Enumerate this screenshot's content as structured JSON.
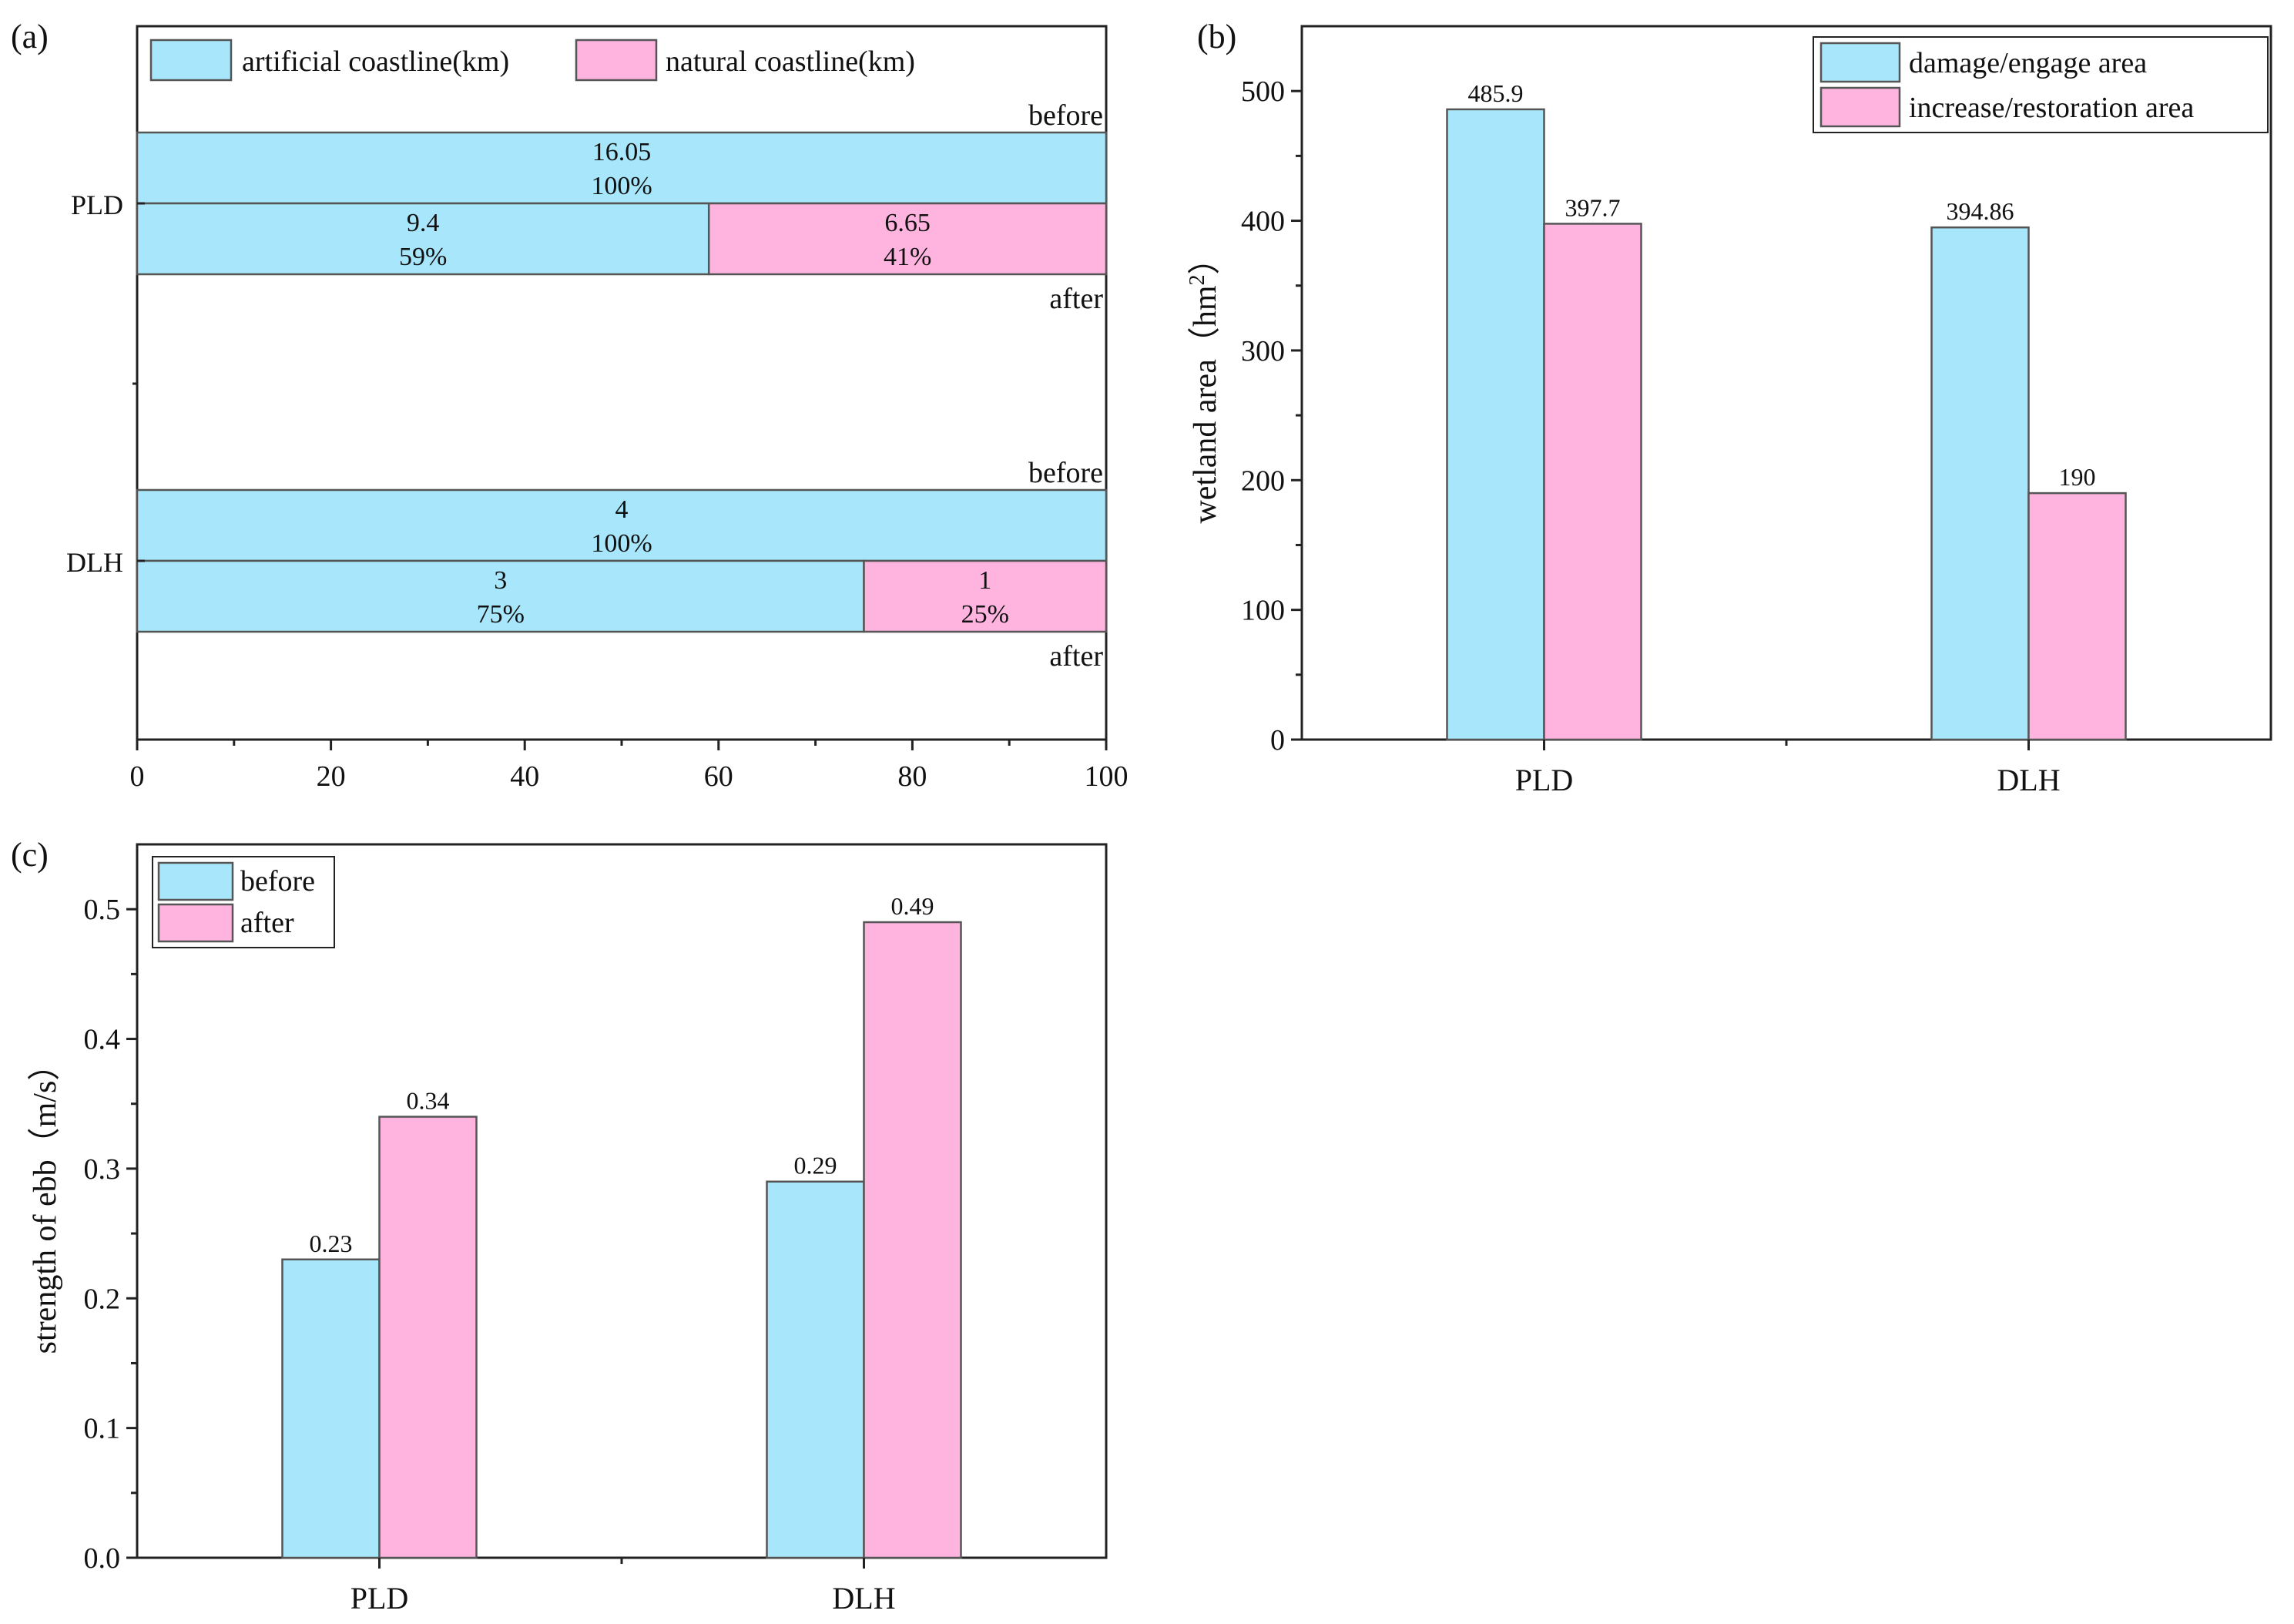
{
  "colors": {
    "cyan": "#a8e6fb",
    "pink": "#ffb3df",
    "edge": "#555555",
    "axis": "#222222"
  },
  "chart_data": [
    {
      "panel": "(a)",
      "type": "bar",
      "orientation": "horizontal",
      "stacked": true,
      "legend": {
        "placement": "top-left",
        "entries": [
          "artificial coastline(km)",
          "natural coastline(km)"
        ]
      },
      "xlim": [
        0,
        100
      ],
      "xticks": [
        0,
        20,
        40,
        60,
        80,
        100
      ],
      "grid": false,
      "groups": [
        {
          "label": "PLD",
          "before_label": "before",
          "after_label": "after",
          "before": {
            "artificial_km": "16.05",
            "artificial_pct": 100,
            "artificial_pct_label": "100%"
          },
          "after": {
            "artificial_km": "9.4",
            "artificial_pct": 59,
            "artificial_pct_label": "59%",
            "natural_km": "6.65",
            "natural_pct": 41,
            "natural_pct_label": "41%"
          }
        },
        {
          "label": "DLH",
          "before_label": "before",
          "after_label": "after",
          "before": {
            "artificial_km": "4",
            "artificial_pct": 100,
            "artificial_pct_label": "100%"
          },
          "after": {
            "artificial_km": "3",
            "artificial_pct": 75,
            "artificial_pct_label": "75%",
            "natural_km": "1",
            "natural_pct": 25,
            "natural_pct_label": "25%"
          }
        }
      ]
    },
    {
      "panel": "(b)",
      "type": "bar",
      "ylabel_main": "wetland area（hm",
      "ylabel_sup": "2",
      "ylabel_tail": "）",
      "ylim": [
        0,
        550
      ],
      "yticks": [
        0,
        100,
        200,
        300,
        400,
        500
      ],
      "categories": [
        "PLD",
        "DLH"
      ],
      "legend": {
        "placement": "top-right"
      },
      "grid": false,
      "series": [
        {
          "name": "damage/engage area",
          "values": [
            485.9,
            394.86
          ],
          "labels": [
            "485.9",
            "394.86"
          ]
        },
        {
          "name": "increase/restoration area",
          "values": [
            397.7,
            190
          ],
          "labels": [
            "397.7",
            "190"
          ]
        }
      ]
    },
    {
      "panel": "(c)",
      "type": "bar",
      "ylabel": "strength of ebb（m/s）",
      "ylim": [
        0,
        0.55
      ],
      "yticks": [
        0,
        0.1,
        0.2,
        0.3,
        0.4,
        0.5
      ],
      "ytick_labels": [
        "0.0",
        "0.1",
        "0.2",
        "0.3",
        "0.4",
        "0.5"
      ],
      "categories": [
        "PLD",
        "DLH"
      ],
      "legend": {
        "placement": "top-left"
      },
      "grid": false,
      "series": [
        {
          "name": "before",
          "values": [
            0.23,
            0.29
          ],
          "labels": [
            "0.23",
            "0.29"
          ]
        },
        {
          "name": "after",
          "values": [
            0.34,
            0.49
          ],
          "labels": [
            "0.34",
            "0.49"
          ]
        }
      ]
    }
  ]
}
